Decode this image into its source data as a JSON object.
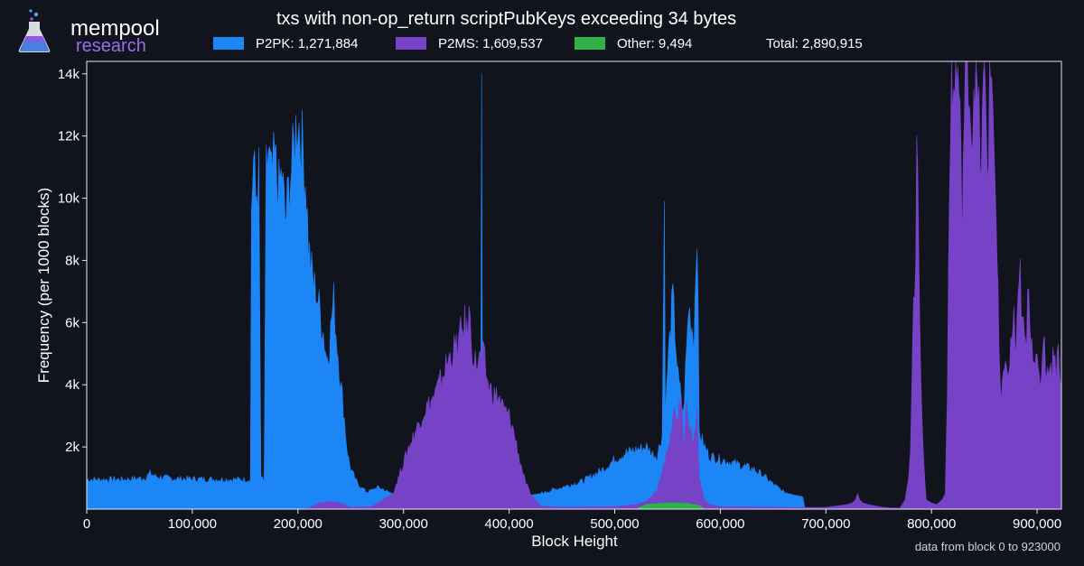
{
  "branding": {
    "name": "mempool",
    "subtitle": "research",
    "icon": "flask-icon"
  },
  "footnote": "data from block 0 to 923000",
  "colors": {
    "background": "#11131d",
    "p2pk": "#1d86f7",
    "p2ms": "#7643c7",
    "other": "#2eb34b",
    "axis": "#ffffff"
  },
  "chart_data": {
    "type": "bar",
    "title": "txs with non-op_return scriptPubKeys exceeding 34 bytes",
    "xlabel": "Block Height",
    "ylabel": "Frequency (per 1000 blocks)",
    "xlim": [
      0,
      923000
    ],
    "ylim": [
      0,
      14400
    ],
    "bin_size": 1000,
    "stacked": false,
    "x_ticks": [
      0,
      100000,
      200000,
      300000,
      400000,
      500000,
      600000,
      700000,
      800000,
      900000
    ],
    "x_tick_labels": [
      "0",
      "100,000",
      "200,000",
      "300,000",
      "400,000",
      "500,000",
      "600,000",
      "700,000",
      "800,000",
      "900,000"
    ],
    "y_ticks": [
      2000,
      4000,
      6000,
      8000,
      10000,
      12000,
      14000
    ],
    "y_tick_labels": [
      "2k",
      "4k",
      "6k",
      "8k",
      "10k",
      "12k",
      "14k"
    ],
    "grid": false,
    "legend_position": "top",
    "total_label": "Total: 2,890,915",
    "series": [
      {
        "name": "P2PK: 1,271,884",
        "color": "#1d86f7",
        "points": [
          [
            0,
            950
          ],
          [
            20000,
            950
          ],
          [
            40000,
            960
          ],
          [
            55000,
            1000
          ],
          [
            60000,
            1150
          ],
          [
            65000,
            1050
          ],
          [
            80000,
            980
          ],
          [
            100000,
            970
          ],
          [
            120000,
            960
          ],
          [
            140000,
            950
          ],
          [
            155000,
            950
          ],
          [
            156000,
            9800
          ],
          [
            158000,
            11200
          ],
          [
            160000,
            10000
          ],
          [
            163000,
            10700
          ],
          [
            165000,
            1000
          ],
          [
            168000,
            900
          ],
          [
            170000,
            10800
          ],
          [
            172000,
            11500
          ],
          [
            175000,
            10500
          ],
          [
            178000,
            11200
          ],
          [
            182000,
            10200
          ],
          [
            185000,
            10800
          ],
          [
            188000,
            9200
          ],
          [
            192000,
            10500
          ],
          [
            195000,
            11200
          ],
          [
            198000,
            12200
          ],
          [
            200000,
            12700
          ],
          [
            202000,
            12000
          ],
          [
            205000,
            11500
          ],
          [
            208000,
            10200
          ],
          [
            210000,
            8500
          ],
          [
            212000,
            7800
          ],
          [
            215000,
            7200
          ],
          [
            218000,
            6900
          ],
          [
            221000,
            6300
          ],
          [
            224000,
            5700
          ],
          [
            227000,
            4900
          ],
          [
            230000,
            5300
          ],
          [
            232000,
            6200
          ],
          [
            234000,
            6700
          ],
          [
            236000,
            5700
          ],
          [
            238000,
            5000
          ],
          [
            240000,
            4200
          ],
          [
            242000,
            3600
          ],
          [
            244000,
            2900
          ],
          [
            246000,
            2100
          ],
          [
            248000,
            1600
          ],
          [
            250000,
            1300
          ],
          [
            255000,
            900
          ],
          [
            260000,
            700
          ],
          [
            265000,
            550
          ],
          [
            270000,
            600
          ],
          [
            275000,
            700
          ],
          [
            280000,
            650
          ],
          [
            285000,
            550
          ],
          [
            290000,
            500
          ],
          [
            300000,
            400
          ],
          [
            310000,
            300
          ],
          [
            320000,
            250
          ],
          [
            330000,
            200
          ],
          [
            340000,
            200
          ],
          [
            350000,
            250
          ],
          [
            360000,
            300
          ],
          [
            370000,
            400
          ],
          [
            373000,
            600
          ],
          [
            374000,
            14400
          ],
          [
            375000,
            800
          ],
          [
            380000,
            400
          ],
          [
            390000,
            300
          ],
          [
            400000,
            350
          ],
          [
            410000,
            400
          ],
          [
            420000,
            450
          ],
          [
            430000,
            500
          ],
          [
            440000,
            600
          ],
          [
            450000,
            700
          ],
          [
            460000,
            800
          ],
          [
            470000,
            900
          ],
          [
            480000,
            1100
          ],
          [
            490000,
            1300
          ],
          [
            500000,
            1600
          ],
          [
            510000,
            1800
          ],
          [
            520000,
            1900
          ],
          [
            530000,
            2000
          ],
          [
            535000,
            1800
          ],
          [
            540000,
            1700
          ],
          [
            545000,
            2400
          ],
          [
            547000,
            9800
          ],
          [
            548000,
            3000
          ],
          [
            550000,
            4500
          ],
          [
            555000,
            6800
          ],
          [
            560000,
            4200
          ],
          [
            565000,
            3000
          ],
          [
            570000,
            6500
          ],
          [
            575000,
            5500
          ],
          [
            578000,
            9400
          ],
          [
            580000,
            2500
          ],
          [
            585000,
            2000
          ],
          [
            590000,
            1700
          ],
          [
            600000,
            1600
          ],
          [
            610000,
            1500
          ],
          [
            620000,
            1400
          ],
          [
            630000,
            1300
          ],
          [
            640000,
            1100
          ],
          [
            650000,
            800
          ],
          [
            660000,
            550
          ],
          [
            670000,
            450
          ],
          [
            678000,
            400
          ],
          [
            680000,
            50
          ],
          [
            700000,
            30
          ],
          [
            800000,
            20
          ],
          [
            923000,
            20
          ]
        ]
      },
      {
        "name": "P2MS: 1,609,537",
        "color": "#7643c7",
        "points": [
          [
            0,
            0
          ],
          [
            200000,
            0
          ],
          [
            210000,
            30
          ],
          [
            220000,
            200
          ],
          [
            230000,
            250
          ],
          [
            240000,
            200
          ],
          [
            250000,
            60
          ],
          [
            270000,
            80
          ],
          [
            280000,
            300
          ],
          [
            290000,
            500
          ],
          [
            295000,
            1000
          ],
          [
            300000,
            1500
          ],
          [
            305000,
            2000
          ],
          [
            310000,
            2400
          ],
          [
            315000,
            2800
          ],
          [
            320000,
            3200
          ],
          [
            325000,
            3400
          ],
          [
            330000,
            3700
          ],
          [
            335000,
            4100
          ],
          [
            340000,
            4600
          ],
          [
            345000,
            5000
          ],
          [
            350000,
            5200
          ],
          [
            355000,
            5700
          ],
          [
            358000,
            6000
          ],
          [
            360000,
            5600
          ],
          [
            362000,
            6300
          ],
          [
            365000,
            5200
          ],
          [
            368000,
            4700
          ],
          [
            372000,
            4800
          ],
          [
            376000,
            4900
          ],
          [
            380000,
            4000
          ],
          [
            385000,
            3700
          ],
          [
            390000,
            3600
          ],
          [
            395000,
            3200
          ],
          [
            400000,
            3000
          ],
          [
            405000,
            2400
          ],
          [
            410000,
            1600
          ],
          [
            415000,
            900
          ],
          [
            420000,
            500
          ],
          [
            425000,
            300
          ],
          [
            430000,
            100
          ],
          [
            450000,
            60
          ],
          [
            500000,
            80
          ],
          [
            520000,
            150
          ],
          [
            530000,
            250
          ],
          [
            540000,
            600
          ],
          [
            545000,
            1200
          ],
          [
            550000,
            2000
          ],
          [
            555000,
            3000
          ],
          [
            558000,
            3200
          ],
          [
            560000,
            3000
          ],
          [
            563000,
            4000
          ],
          [
            565000,
            2000
          ],
          [
            568000,
            3800
          ],
          [
            570000,
            2700
          ],
          [
            575000,
            2000
          ],
          [
            578000,
            3400
          ],
          [
            580000,
            1000
          ],
          [
            585000,
            300
          ],
          [
            590000,
            150
          ],
          [
            600000,
            80
          ],
          [
            650000,
            60
          ],
          [
            680000,
            50
          ],
          [
            700000,
            60
          ],
          [
            710000,
            100
          ],
          [
            720000,
            150
          ],
          [
            725000,
            200
          ],
          [
            728000,
            300
          ],
          [
            730000,
            500
          ],
          [
            732000,
            300
          ],
          [
            735000,
            200
          ],
          [
            740000,
            150
          ],
          [
            750000,
            80
          ],
          [
            760000,
            40
          ],
          [
            770000,
            30
          ],
          [
            775000,
            300
          ],
          [
            778000,
            1000
          ],
          [
            780000,
            2000
          ],
          [
            782000,
            5000
          ],
          [
            785000,
            8500
          ],
          [
            786000,
            12800
          ],
          [
            788000,
            8000
          ],
          [
            790000,
            4000
          ],
          [
            792000,
            2000
          ],
          [
            795000,
            300
          ],
          [
            800000,
            200
          ],
          [
            805000,
            150
          ],
          [
            810000,
            300
          ],
          [
            813000,
            500
          ],
          [
            815000,
            4000
          ],
          [
            817000,
            10000
          ],
          [
            819000,
            14400
          ],
          [
            821000,
            13000
          ],
          [
            823000,
            14400
          ],
          [
            826000,
            13500
          ],
          [
            829000,
            9500
          ],
          [
            832000,
            14400
          ],
          [
            835000,
            14400
          ],
          [
            838000,
            12000
          ],
          [
            841000,
            14400
          ],
          [
            844000,
            13000
          ],
          [
            847000,
            11000
          ],
          [
            850000,
            14400
          ],
          [
            853000,
            11000
          ],
          [
            856000,
            14400
          ],
          [
            859000,
            12500
          ],
          [
            862000,
            8000
          ],
          [
            864000,
            5000
          ],
          [
            866000,
            3200
          ],
          [
            868000,
            4200
          ],
          [
            870000,
            5200
          ],
          [
            872000,
            4000
          ],
          [
            874000,
            4800
          ],
          [
            876000,
            5500
          ],
          [
            878000,
            6200
          ],
          [
            880000,
            4900
          ],
          [
            882000,
            6500
          ],
          [
            884000,
            7500
          ],
          [
            886000,
            6000
          ],
          [
            888000,
            5400
          ],
          [
            890000,
            5200
          ],
          [
            892000,
            7700
          ],
          [
            894000,
            5600
          ],
          [
            896000,
            5300
          ],
          [
            898000,
            4900
          ],
          [
            900000,
            4500
          ],
          [
            902000,
            4100
          ],
          [
            904000,
            4300
          ],
          [
            906000,
            5900
          ],
          [
            908000,
            4800
          ],
          [
            910000,
            4200
          ],
          [
            912000,
            5000
          ],
          [
            914000,
            4300
          ],
          [
            916000,
            5400
          ],
          [
            918000,
            4400
          ],
          [
            920000,
            5200
          ],
          [
            923000,
            4000
          ]
        ]
      },
      {
        "name": "Other: 9,494",
        "color": "#2eb34b",
        "points": [
          [
            0,
            0
          ],
          [
            520000,
            0
          ],
          [
            525000,
            80
          ],
          [
            530000,
            150
          ],
          [
            540000,
            180
          ],
          [
            550000,
            200
          ],
          [
            560000,
            200
          ],
          [
            570000,
            180
          ],
          [
            580000,
            120
          ],
          [
            585000,
            0
          ],
          [
            923000,
            0
          ]
        ]
      }
    ]
  }
}
